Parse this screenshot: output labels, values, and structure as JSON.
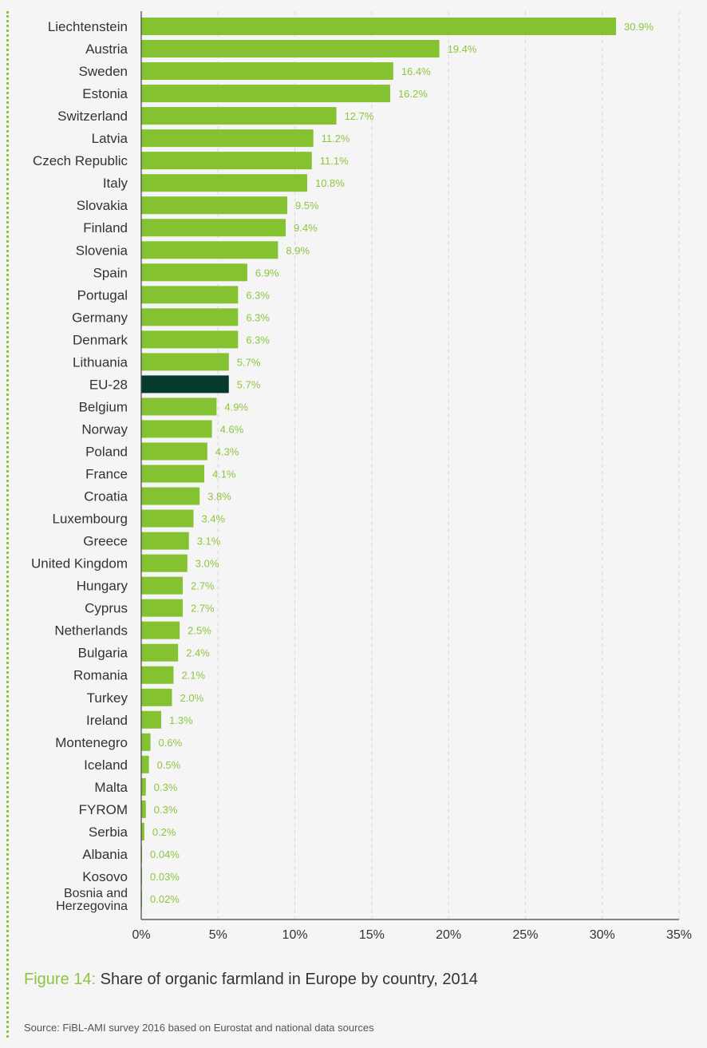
{
  "colors": {
    "bar": "#85c232",
    "highlight_bar": "#053a2c",
    "value_label": "#8cc63f",
    "grid": "#d8d8d8",
    "axis": "#444444",
    "text": "#333333"
  },
  "chart_data": {
    "type": "bar",
    "orientation": "horizontal",
    "categories": [
      "Liechtenstein",
      "Austria",
      "Sweden",
      "Estonia",
      "Switzerland",
      "Latvia",
      "Czech Republic",
      "Italy",
      "Slovakia",
      "Finland",
      "Slovenia",
      "Spain",
      "Portugal",
      "Germany",
      "Denmark",
      "Lithuania",
      "EU-28",
      "Belgium",
      "Norway",
      "Poland",
      "France",
      "Croatia",
      "Luxembourg",
      "Greece",
      "United Kingdom",
      "Hungary",
      "Cyprus",
      "Netherlands",
      "Bulgaria",
      "Romania",
      "Turkey",
      "Ireland",
      "Montenegro",
      "Iceland",
      "Malta",
      "FYROM",
      "Serbia",
      "Albania",
      "Kosovo",
      "Bosnia and Herzegovina"
    ],
    "category_lines": [
      [
        "Liechtenstein"
      ],
      [
        "Austria"
      ],
      [
        "Sweden"
      ],
      [
        "Estonia"
      ],
      [
        "Switzerland"
      ],
      [
        "Latvia"
      ],
      [
        "Czech Republic"
      ],
      [
        "Italy"
      ],
      [
        "Slovakia"
      ],
      [
        "Finland"
      ],
      [
        "Slovenia"
      ],
      [
        "Spain"
      ],
      [
        "Portugal"
      ],
      [
        "Germany"
      ],
      [
        "Denmark"
      ],
      [
        "Lithuania"
      ],
      [
        "EU-28"
      ],
      [
        "Belgium"
      ],
      [
        "Norway"
      ],
      [
        "Poland"
      ],
      [
        "France"
      ],
      [
        "Croatia"
      ],
      [
        "Luxembourg"
      ],
      [
        "Greece"
      ],
      [
        "United Kingdom"
      ],
      [
        "Hungary"
      ],
      [
        "Cyprus"
      ],
      [
        "Netherlands"
      ],
      [
        "Bulgaria"
      ],
      [
        "Romania"
      ],
      [
        "Turkey"
      ],
      [
        "Ireland"
      ],
      [
        "Montenegro"
      ],
      [
        "Iceland"
      ],
      [
        "Malta"
      ],
      [
        "FYROM"
      ],
      [
        "Serbia"
      ],
      [
        "Albania"
      ],
      [
        "Kosovo"
      ],
      [
        "Bosnia and",
        "Herzegovina"
      ]
    ],
    "values": [
      30.9,
      19.4,
      16.4,
      16.2,
      12.7,
      11.2,
      11.1,
      10.8,
      9.5,
      9.4,
      8.9,
      6.9,
      6.3,
      6.3,
      6.3,
      5.7,
      5.7,
      4.9,
      4.6,
      4.3,
      4.1,
      3.8,
      3.4,
      3.1,
      3.0,
      2.7,
      2.7,
      2.5,
      2.4,
      2.1,
      2.0,
      1.3,
      0.6,
      0.5,
      0.3,
      0.3,
      0.2,
      0.04,
      0.03,
      0.02
    ],
    "value_labels": [
      "30.9%",
      "19.4%",
      "16.4%",
      "16.2%",
      "12.7%",
      "11.2%",
      "11.1%",
      "10.8%",
      "9.5%",
      "9.4%",
      "8.9%",
      "6.9%",
      "6.3%",
      "6.3%",
      "6.3%",
      "5.7%",
      "5.7%",
      "4.9%",
      "4.6%",
      "4.3%",
      "4.1%",
      "3.8%",
      "3.4%",
      "3.1%",
      "3.0%",
      "2.7%",
      "2.7%",
      "2.5%",
      "2.4%",
      "2.1%",
      "2.0%",
      "1.3%",
      "0.6%",
      "0.5%",
      "0.3%",
      "0.3%",
      "0.2%",
      "0.04%",
      "0.03%",
      "0.02%"
    ],
    "highlight": "EU-28",
    "xlim": [
      0,
      35
    ],
    "xticks": [
      0,
      5,
      10,
      15,
      20,
      25,
      30,
      35
    ],
    "xtick_labels": [
      "0%",
      "5%",
      "10%",
      "15%",
      "20%",
      "25%",
      "30%",
      "35%"
    ],
    "grid": "vertical dashed",
    "title": "Share of organic farmland in Europe by country, 2014",
    "xlabel": "",
    "ylabel": ""
  },
  "caption": {
    "figure_label": "Figure 14:",
    "title": " Share of organic farmland in Europe by country, 2014"
  },
  "source": "Source: FiBL-AMI survey 2016 based on Eurostat and national data sources"
}
